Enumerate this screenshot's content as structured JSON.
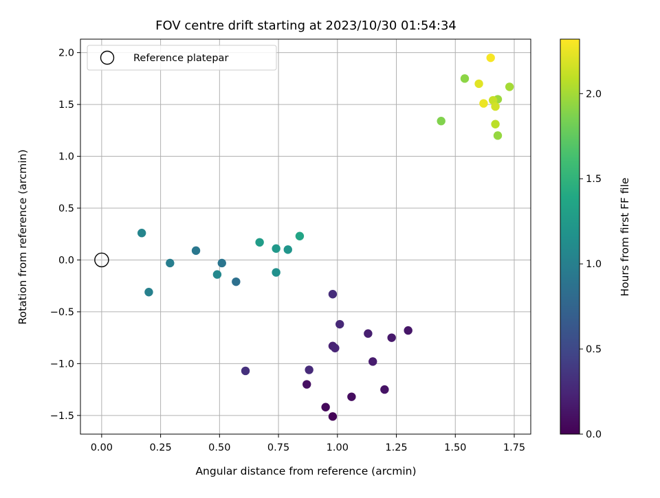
{
  "chart_data": {
    "type": "scatter",
    "title": "FOV centre drift starting at 2023/10/30 01:54:34",
    "xlabel": "Angular distance from reference (arcmin)",
    "ylabel": "Rotation from reference (arcmin)",
    "xlim": [
      -0.09,
      1.82
    ],
    "ylim": [
      -1.68,
      2.13
    ],
    "xticks": [
      0.0,
      0.25,
      0.5,
      0.75,
      1.0,
      1.25,
      1.5,
      1.75
    ],
    "xtick_labels": [
      "0.00",
      "0.25",
      "0.50",
      "0.75",
      "1.00",
      "1.25",
      "1.50",
      "1.75"
    ],
    "yticks": [
      -1.5,
      -1.0,
      -0.5,
      0.0,
      0.5,
      1.0,
      1.5,
      2.0
    ],
    "ytick_labels": [
      "−1.5",
      "−1.0",
      "−0.5",
      "0.0",
      "0.5",
      "1.0",
      "1.5",
      "2.0"
    ],
    "grid": true,
    "legend": {
      "placement": "top-left",
      "entries": [
        "Reference platepar"
      ]
    },
    "reference_point": {
      "x": 0.0,
      "y": 0.0,
      "name": "Reference platepar",
      "marker": "open-circle"
    },
    "colorbar": {
      "label": "Hours from first FF file",
      "range": [
        0.0,
        2.32
      ],
      "ticks": [
        0.0,
        0.5,
        1.0,
        1.5,
        2.0
      ],
      "tick_labels": [
        "0.0",
        "0.5",
        "1.0",
        "1.5",
        "2.0"
      ],
      "colormap": "viridis"
    },
    "points": [
      {
        "x": 0.98,
        "y": -1.51,
        "hours": 0.02
      },
      {
        "x": 0.95,
        "y": -1.42,
        "hours": 0.05
      },
      {
        "x": 1.06,
        "y": -1.32,
        "hours": 0.08
      },
      {
        "x": 0.87,
        "y": -1.2,
        "hours": 0.1
      },
      {
        "x": 1.2,
        "y": -1.25,
        "hours": 0.12
      },
      {
        "x": 1.3,
        "y": -0.68,
        "hours": 0.14
      },
      {
        "x": 1.23,
        "y": -0.75,
        "hours": 0.16
      },
      {
        "x": 1.15,
        "y": -0.98,
        "hours": 0.18
      },
      {
        "x": 1.13,
        "y": -0.71,
        "hours": 0.2
      },
      {
        "x": 0.98,
        "y": -0.83,
        "hours": 0.22
      },
      {
        "x": 0.99,
        "y": -0.85,
        "hours": 0.24
      },
      {
        "x": 1.01,
        "y": -0.62,
        "hours": 0.26
      },
      {
        "x": 0.88,
        "y": -1.06,
        "hours": 0.28
      },
      {
        "x": 0.98,
        "y": -0.33,
        "hours": 0.3
      },
      {
        "x": 0.61,
        "y": -1.07,
        "hours": 0.32
      },
      {
        "x": 0.57,
        "y": -0.21,
        "hours": 0.85
      },
      {
        "x": 0.51,
        "y": -0.03,
        "hours": 0.9
      },
      {
        "x": 0.4,
        "y": 0.09,
        "hours": 0.92
      },
      {
        "x": 0.29,
        "y": -0.03,
        "hours": 0.98
      },
      {
        "x": 0.2,
        "y": -0.31,
        "hours": 1.0
      },
      {
        "x": 0.17,
        "y": 0.26,
        "hours": 1.05
      },
      {
        "x": 0.49,
        "y": -0.14,
        "hours": 1.08
      },
      {
        "x": 0.74,
        "y": -0.12,
        "hours": 1.15
      },
      {
        "x": 0.79,
        "y": 0.1,
        "hours": 1.2
      },
      {
        "x": 0.74,
        "y": 0.11,
        "hours": 1.23
      },
      {
        "x": 0.67,
        "y": 0.17,
        "hours": 1.27
      },
      {
        "x": 0.84,
        "y": 0.23,
        "hours": 1.35
      },
      {
        "x": 1.44,
        "y": 1.34,
        "hours": 1.88
      },
      {
        "x": 1.54,
        "y": 1.75,
        "hours": 1.92
      },
      {
        "x": 1.68,
        "y": 1.2,
        "hours": 1.95
      },
      {
        "x": 1.68,
        "y": 1.55,
        "hours": 1.97
      },
      {
        "x": 1.73,
        "y": 1.67,
        "hours": 2.0
      },
      {
        "x": 1.67,
        "y": 1.31,
        "hours": 2.08
      },
      {
        "x": 1.66,
        "y": 1.54,
        "hours": 2.12
      },
      {
        "x": 1.67,
        "y": 1.48,
        "hours": 2.16
      },
      {
        "x": 1.6,
        "y": 1.7,
        "hours": 2.22
      },
      {
        "x": 1.62,
        "y": 1.51,
        "hours": 2.26
      },
      {
        "x": 1.65,
        "y": 1.95,
        "hours": 2.3
      }
    ]
  }
}
